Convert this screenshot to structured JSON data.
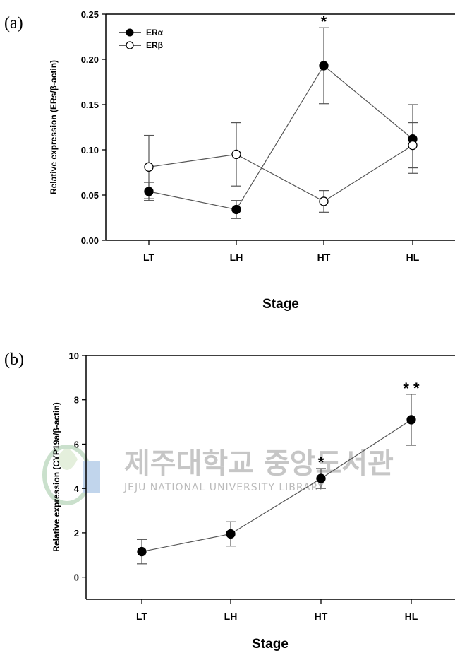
{
  "chart_data": [
    {
      "panel_label": "(a)",
      "type": "line",
      "categories": [
        "LT",
        "LH",
        "HT",
        "HL"
      ],
      "xlabel": "Stage",
      "ylabel": "Relative expression (ERs/β-actin)",
      "ylim": [
        0,
        0.25
      ],
      "yticks": [
        "0.00",
        "0.05",
        "0.10",
        "0.15",
        "0.20",
        "0.25"
      ],
      "legend_position": "top-left",
      "series": [
        {
          "name": "ERα",
          "marker": "filled-circle",
          "values": [
            0.054,
            0.034,
            0.193,
            0.112
          ],
          "errors": [
            0.01,
            0.01,
            0.042,
            0.038
          ]
        },
        {
          "name": "ERβ",
          "marker": "open-circle",
          "values": [
            0.081,
            0.095,
            0.043,
            0.105
          ],
          "errors": [
            0.035,
            0.035,
            0.012,
            0.025
          ]
        }
      ],
      "annotations": [
        {
          "category": "HT",
          "text": "*"
        }
      ]
    },
    {
      "panel_label": "(b)",
      "type": "line",
      "categories": [
        "LT",
        "LH",
        "HT",
        "HL"
      ],
      "xlabel": "Stage",
      "ylabel": "Relative expression (CYP19a/β-actin)",
      "ylim": [
        -1,
        10
      ],
      "yticks": [
        "0",
        "2",
        "4",
        "6",
        "8",
        "10"
      ],
      "series": [
        {
          "marker": "filled-circle",
          "values": [
            1.15,
            1.95,
            4.45,
            7.1
          ],
          "errors": [
            0.55,
            0.55,
            0.45,
            1.15
          ]
        }
      ],
      "annotations": [
        {
          "category": "HT",
          "text": "*"
        },
        {
          "category": "HL",
          "text": "* *"
        }
      ]
    }
  ],
  "watermark": {
    "korean": "제주대학교 중앙도서관",
    "english": "JEJU NATIONAL UNIVERSITY LIBRARY"
  }
}
